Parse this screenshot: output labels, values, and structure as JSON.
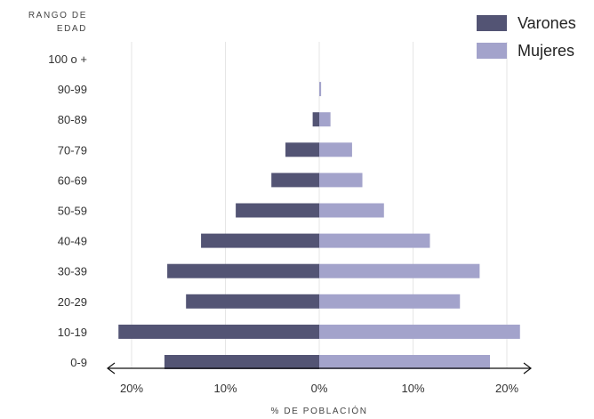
{
  "chart_data": {
    "type": "bar",
    "orientation": "horizontal",
    "ylabel": [
      "RANGO DE",
      "EDAD"
    ],
    "xlabel": "% DE POBLACIÓN",
    "categories": [
      "100 o +",
      "90-99",
      "80-89",
      "70-79",
      "60-69",
      "50-59",
      "40-49",
      "30-39",
      "20-29",
      "10-19",
      "0-9"
    ],
    "series": [
      {
        "name": "Varones",
        "color": "#535474",
        "side": "left",
        "values": [
          0,
          0,
          0.7,
          3.6,
          5.1,
          8.9,
          12.6,
          16.2,
          14.2,
          21.4,
          16.5
        ]
      },
      {
        "name": "Mujeres",
        "color": "#a3a3cb",
        "side": "right",
        "values": [
          0,
          0.2,
          1.2,
          3.5,
          4.6,
          6.9,
          11.8,
          17.1,
          15.0,
          21.4,
          18.2
        ]
      }
    ],
    "xticks": [
      {
        "value": -20,
        "label": "20%"
      },
      {
        "value": -10,
        "label": "10%"
      },
      {
        "value": 0,
        "label": "0%"
      },
      {
        "value": 10,
        "label": "10%"
      },
      {
        "value": 20,
        "label": "20%"
      }
    ],
    "xlim": [
      -22,
      22
    ],
    "grid": "vertical",
    "legend": "top-right"
  }
}
